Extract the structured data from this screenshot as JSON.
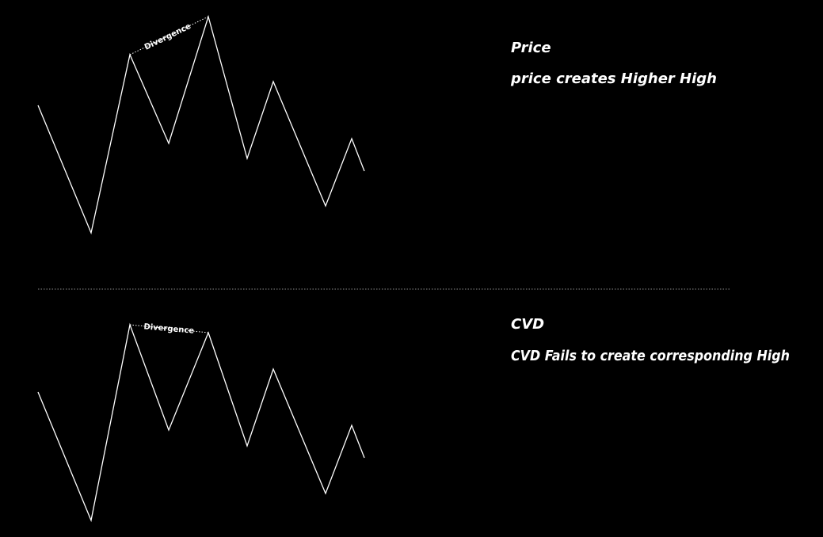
{
  "colors": {
    "background": "#000000",
    "line": "#ffffff",
    "separator": "#8a8a8a",
    "text": "#ffffff"
  },
  "price": {
    "title": "Price",
    "subtitle": "price creates Higher High",
    "divergence_label": "Divergence"
  },
  "cvd": {
    "title": "CVD",
    "subtitle": "CVD Fails to create corresponding High",
    "divergence_label": "Divergence"
  }
}
